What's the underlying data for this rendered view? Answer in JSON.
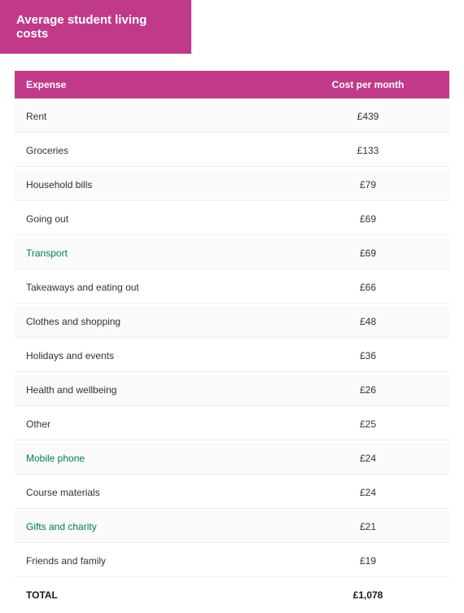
{
  "header": {
    "title": "Average student living costs"
  },
  "colors": {
    "brand": "#c13a8a",
    "link": "#007a5e",
    "card_bg": "#ffffff",
    "page_bg": "#e8e8e8",
    "row_alt_bg": "#fafafa",
    "text": "#333333"
  },
  "table": {
    "columns": [
      "Expense",
      "Cost per month"
    ],
    "rows": [
      {
        "expense": "Rent",
        "cost": "£439",
        "link": false
      },
      {
        "expense": "Groceries",
        "cost": "£133",
        "link": false
      },
      {
        "expense": "Household bills",
        "cost": "£79",
        "link": false
      },
      {
        "expense": "Going out",
        "cost": "£69",
        "link": false
      },
      {
        "expense": "Transport",
        "cost": "£69",
        "link": true
      },
      {
        "expense": "Takeaways and eating out",
        "cost": "£66",
        "link": false
      },
      {
        "expense": "Clothes and shopping",
        "cost": "£48",
        "link": false
      },
      {
        "expense": "Holidays and events",
        "cost": "£36",
        "link": false
      },
      {
        "expense": "Health and wellbeing",
        "cost": "£26",
        "link": false
      },
      {
        "expense": "Other",
        "cost": "£25",
        "link": false
      },
      {
        "expense": "Mobile phone",
        "cost": "£24",
        "link": true
      },
      {
        "expense": "Course materials",
        "cost": "£24",
        "link": false
      },
      {
        "expense": "Gifts and charity",
        "cost": "£21",
        "link": true
      },
      {
        "expense": "Friends and family",
        "cost": "£19",
        "link": false
      }
    ],
    "total": {
      "label": "TOTAL",
      "value": "£1,078"
    }
  }
}
